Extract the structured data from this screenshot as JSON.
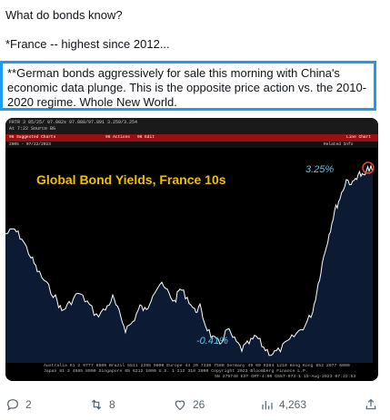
{
  "tweet": {
    "line1": "What do bonds know?",
    "line2": "*France -- highest since 2012...",
    "highlight": "**German bonds aggressively for sale this morning with China's economic data plunge. This is the opposite price action vs. the 2010-2020 regime. Whole New World."
  },
  "media": {
    "top_left": "FRTR 3 05/25/  97.802s  97.888/97.891  3.259/3.254",
    "top_line2": "At 7:22          Source BG",
    "toolbar_left": "96 Suggested Charts",
    "toolbar_mid": "96 Actions",
    "toolbar_mid2": "96 Edit",
    "toolbar_right": "Line Chart",
    "bar2_left": "2005 - 07/22/2023",
    "bar2_right": "Related Info",
    "title": "Global Bond Yields, France 10s",
    "high_label": "3.25%",
    "low_label": "-0.41%",
    "footer_line1": "Australia 61 2 9777 8600  Brazil 5511 2395 9000  Europe 44 20 7330 7500  Germany 49 69 9204 1210  Hong Kong 852 2977 6000",
    "footer_line2": "Japan 81 3 4565 8900        Singapore 65 6212 1000        U.S. 1 212 318 2000        Copyright 2023 Bloomberg Finance L.P.",
    "footer_line3": "SN 379748 EST  GMT-4:00 G557-973-1 15-Aug-2023 07:22:53"
  },
  "colors": {
    "title": "#f0c000",
    "label": "#5bc8e8",
    "line": "#ffffff",
    "fill": "#0c1a33",
    "accent": "#1d9bf0"
  },
  "actions": {
    "reply_count": "2",
    "retweet_count": "8",
    "like_count": "26",
    "view_count": "4,263"
  }
}
